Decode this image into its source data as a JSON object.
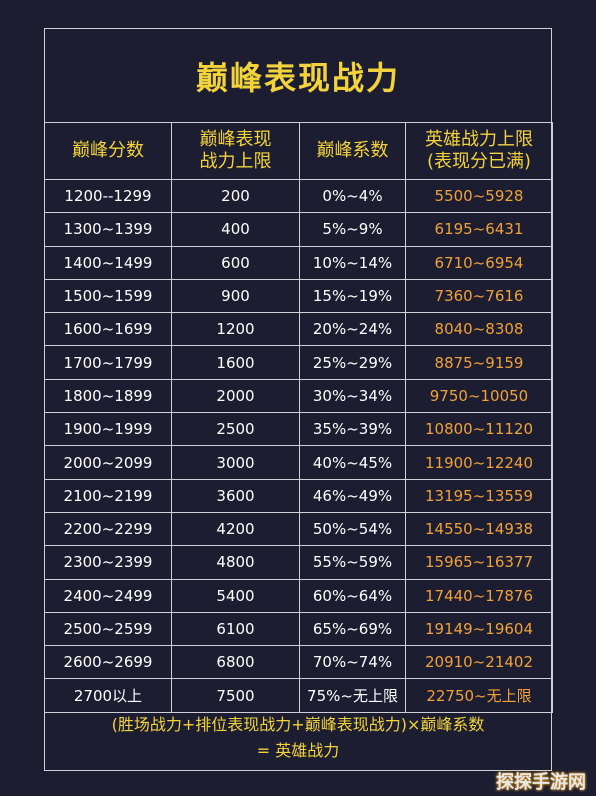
{
  "title": "巅峰表现战力",
  "headers": [
    "巅峰分数",
    "巅峰表现\n战力上限",
    "巅峰系数",
    "英雄战力上限\n(表现分已满)"
  ],
  "rows": [
    [
      "1200--1299",
      "200",
      "0%~4%",
      "5500~5928"
    ],
    [
      "1300~1399",
      "400",
      "5%~9%",
      "6195~6431"
    ],
    [
      "1400~1499",
      "600",
      "10%~14%",
      "6710~6954"
    ],
    [
      "1500~1599",
      "900",
      "15%~19%",
      "7360~7616"
    ],
    [
      "1600~1699",
      "1200",
      "20%~24%",
      "8040~8308"
    ],
    [
      "1700~1799",
      "1600",
      "25%~29%",
      "8875~9159"
    ],
    [
      "1800~1899",
      "2000",
      "30%~34%",
      "9750~10050"
    ],
    [
      "1900~1999",
      "2500",
      "35%~39%",
      "10800~11120"
    ],
    [
      "2000~2099",
      "3000",
      "40%~45%",
      "11900~12240"
    ],
    [
      "2100~2199",
      "3600",
      "46%~49%",
      "13195~13559"
    ],
    [
      "2200~2299",
      "4200",
      "50%~54%",
      "14550~14938"
    ],
    [
      "2300~2399",
      "4800",
      "55%~59%",
      "15965~16377"
    ],
    [
      "2400~2499",
      "5400",
      "60%~64%",
      "17440~17876"
    ],
    [
      "2500~2599",
      "6100",
      "65%~69%",
      "19149~19604"
    ],
    [
      "2600~2699",
      "6800",
      "70%~74%",
      "20910~21402"
    ],
    [
      "2700以上",
      "7500",
      "75%~无上限",
      "22750~无上限"
    ]
  ],
  "formula_line1": "(胜场战力+排位表现战力+巅峰表现战力)×巅峰系数",
  "formula_line2": "= 英雄战力",
  "watermark": "探探手游网",
  "colors": {
    "background": "#1c1d30",
    "title": "#f2d33c",
    "power": "#f0a13a",
    "border": "#cfcfd8"
  }
}
